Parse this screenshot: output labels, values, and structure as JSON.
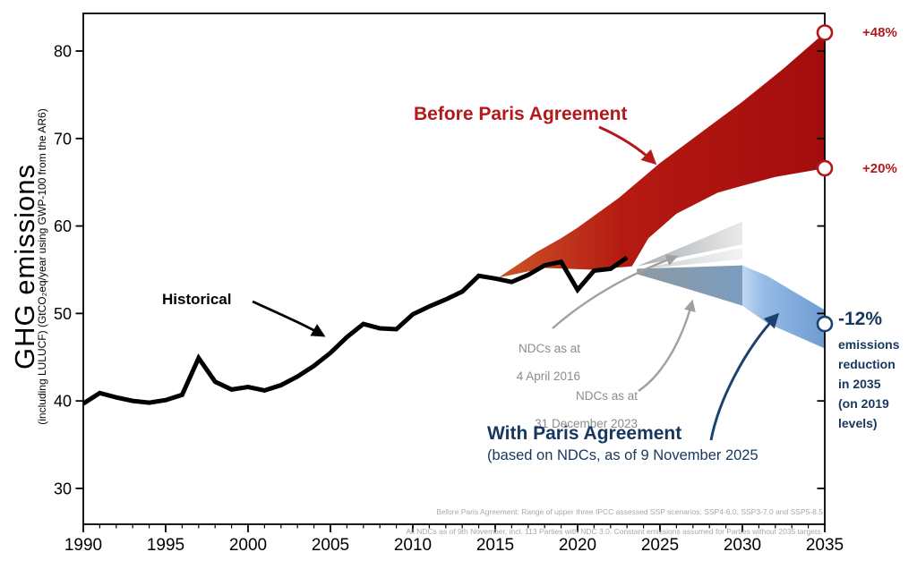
{
  "chart_data": {
    "type": "area",
    "title": "",
    "ylabel_main": "GHG emissions",
    "ylabel_sub": "(including LULUCF) (GtCO₂eq/year using GWP-100 from the AR6)",
    "xlim": [
      1990,
      2035
    ],
    "ylim": [
      25.9,
      84.3
    ],
    "x_major_ticks": [
      1990,
      1995,
      2000,
      2005,
      2010,
      2015,
      2020,
      2025,
      2030,
      2035
    ],
    "x_minor_tick_step": 1,
    "y_major_ticks": [
      30,
      40,
      50,
      60,
      70,
      80
    ],
    "grid": false,
    "historical": {
      "name": "Historical",
      "years": [
        1990,
        1991,
        1992,
        1993,
        1994,
        1995,
        1996,
        1997,
        1998,
        1999,
        2000,
        2001,
        2002,
        2003,
        2004,
        2005,
        2006,
        2007,
        2008,
        2009,
        2010,
        2011,
        2012,
        2013,
        2014,
        2015,
        2016,
        2017,
        2018,
        2019,
        2020,
        2021,
        2022,
        2023
      ],
      "values": [
        39.7,
        40.9,
        40.4,
        40.0,
        39.8,
        40.1,
        40.7,
        44.9,
        42.2,
        41.3,
        41.6,
        41.2,
        41.8,
        42.8,
        44.0,
        45.5,
        47.3,
        48.8,
        48.3,
        48.2,
        49.9,
        50.8,
        51.6,
        52.5,
        54.3,
        54.0,
        53.6,
        54.4,
        55.5,
        55.9,
        52.7,
        54.9,
        55.1,
        56.4
      ]
    },
    "bands": [
      {
        "id": "before-paris",
        "label": "Before Paris Agreement",
        "note": "Range of upper three IPCC assessed SSP scenarios: SSP4-6.0, SSP3-7.0 and SSP5-8.5",
        "polygon": [
          [
            2015.2,
            54.1
          ],
          [
            2017.5,
            57.0
          ],
          [
            2019,
            58.6
          ],
          [
            2020,
            59.8
          ],
          [
            2022.5,
            63.2
          ],
          [
            2025,
            67.2
          ],
          [
            2027.5,
            70.7
          ],
          [
            2030,
            74.2
          ],
          [
            2032.5,
            78.0
          ],
          [
            2035,
            82.1
          ],
          [
            2035,
            66.6
          ],
          [
            2032,
            65.6
          ],
          [
            2030,
            64.6
          ],
          [
            2028.5,
            63.8
          ],
          [
            2026,
            61.4
          ],
          [
            2024.3,
            58.6
          ],
          [
            2023.3,
            55.4
          ],
          [
            2021,
            55.0
          ],
          [
            2018,
            55.2
          ],
          [
            2016,
            54.4
          ]
        ]
      },
      {
        "id": "ndc-2016",
        "label": "NDCs as at 4 April 2016",
        "polygon": [
          [
            2023.6,
            55.4
          ],
          [
            2030,
            60.5
          ],
          [
            2030,
            57.9
          ]
        ]
      },
      {
        "id": "ndc-2023",
        "label": "NDCs as at 31 December 2023",
        "polygon": [
          [
            2023.6,
            55.0
          ],
          [
            2030,
            57.5
          ],
          [
            2030,
            56.2
          ]
        ]
      },
      {
        "id": "with-paris-a",
        "label": "With Paris Agreement 2024-2030",
        "polygon": [
          [
            2023.6,
            55.1
          ],
          [
            2030,
            55.5
          ],
          [
            2030,
            50.9
          ],
          [
            2026.5,
            52.9
          ],
          [
            2023.6,
            54.5
          ]
        ]
      },
      {
        "id": "with-paris-b",
        "label": "With Paris Agreement 2030-2035",
        "polygon": [
          [
            2030,
            55.5
          ],
          [
            2031.5,
            54.3
          ],
          [
            2035,
            50.4
          ],
          [
            2035,
            46.0
          ],
          [
            2031.5,
            48.9
          ],
          [
            2030,
            50.9
          ]
        ]
      }
    ],
    "end_markers": [
      {
        "year": 2035,
        "value": 82.1,
        "label": "+48%",
        "color_key": "red"
      },
      {
        "year": 2035,
        "value": 66.6,
        "label": "+20%",
        "color_key": "red"
      },
      {
        "year": 2035,
        "value": 48.8,
        "label": "-12%",
        "color_key": "navy"
      }
    ],
    "annotations": {
      "before_paris": {
        "text": "Before Paris Agreement"
      },
      "historical": {
        "text": "Historical"
      },
      "ndc_2016": {
        "line1": "NDCs as at",
        "line2": "4 April 2016"
      },
      "ndc_2023": {
        "line1": "NDCs as at",
        "line2": "31 December 2023"
      },
      "with_paris": {
        "title": "With Paris Agreement",
        "subtitle": "(based on NDCs, as of 9 November 2025"
      },
      "reduction_note": "emissions\nreduction\nin 2035\n(on 2019\nlevels)",
      "footnote1": "Before Paris Agreement: Range of upper three IPCC assessed SSP scenarios: SSP4-6.0, SSP3-7.0 and SSP5-8.5",
      "footnote2": "All NDCs as of 9th November, incl. 113 Parties with NDC 3.0. Constant emissions assumed for Parties without 2035 targets."
    }
  },
  "colors": {
    "band_red_start": "#cb5527",
    "band_red_mid": "#b51a12",
    "band_red_end": "#a30c0e",
    "red_text": "#b3191c",
    "navy_text": "#17375e",
    "navy_arrow": "#1b4370",
    "gray_text": "#8c8c8c",
    "gray_arrow": "#a0a0a0",
    "historical_line": "#000000",
    "ndc2016_start": "#aab0b5",
    "ndc2016_end": "#e9e9e9",
    "ndc2023_start": "#ccd1d4",
    "ndc2023_end": "#f3f3f3",
    "with_paris_a_start": "#8d99a1",
    "with_paris_a_end": "#7b9dc0",
    "with_paris_b_start": "#c2d7ef",
    "with_paris_b_mid": "#96bbe5",
    "with_paris_b_end": "#6f9cd2",
    "axis": "#000000",
    "fine_print": "#a8a8a8"
  }
}
